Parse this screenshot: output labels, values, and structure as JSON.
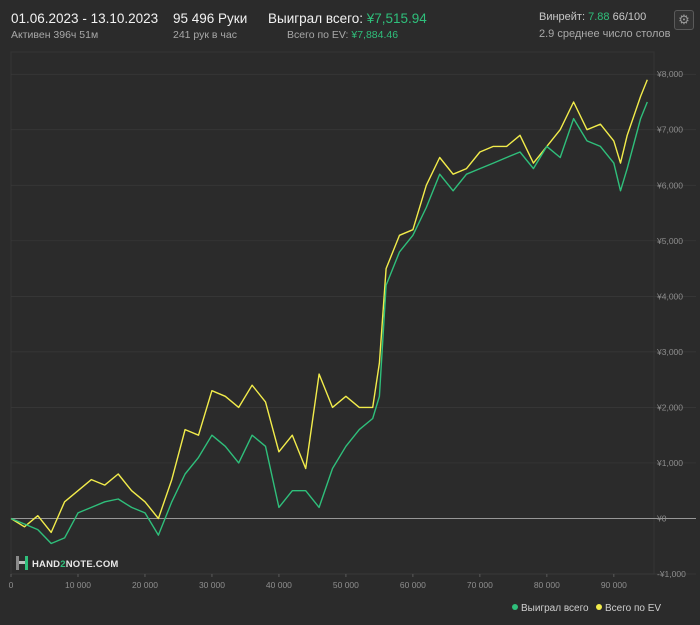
{
  "header": {
    "date_range": "01.06.2023 - 13.10.2023",
    "active_time": "Активен 396ч 51м",
    "hands": "95 496 Руки",
    "hands_per_hour": "241 рук в час",
    "won_label": "Выиграл всего:",
    "won_value": "¥7,515.94",
    "ev_label": "Всего по EV:",
    "ev_value": "¥7,884.46",
    "winrate_label": "Винрейт:",
    "winrate_value": "7.88",
    "winrate_suffix": "66/100",
    "tables": "2.9 среднее число столов",
    "settings_icon": "gear-icon"
  },
  "logo": {
    "text_a": "HAND",
    "text_b": "2",
    "text_c": "NOTE.COM"
  },
  "colors": {
    "won": "#2fbf7b",
    "ev": "#f2ec4b",
    "background": "#2b2b2b",
    "grid": "#3a3a3a",
    "zero": "#bdbdbd"
  },
  "chart_data": {
    "type": "line",
    "title": "",
    "xlabel": "",
    "ylabel": "",
    "xlim": [
      0,
      96000
    ],
    "ylim": [
      -1000,
      8400
    ],
    "x_ticks": [
      0,
      10000,
      20000,
      30000,
      40000,
      50000,
      60000,
      70000,
      80000,
      90000
    ],
    "x_tick_labels": [
      "0",
      "10 000",
      "20 000",
      "30 000",
      "40 000",
      "50 000",
      "60 000",
      "70 000",
      "80 000",
      "90 000"
    ],
    "y_ticks": [
      -1000,
      0,
      1000,
      2000,
      3000,
      4000,
      5000,
      6000,
      7000,
      8000
    ],
    "y_tick_labels": [
      "-¥1,000",
      "¥0",
      "¥1,000",
      "¥2,000",
      "¥3,000",
      "¥4,000",
      "¥5,000",
      "¥6,000",
      "¥7,000",
      "¥8,000"
    ],
    "grid": true,
    "legend_position": "bottom-right",
    "series": [
      {
        "name": "Выиграл всего",
        "color": "#2fbf7b",
        "x": [
          0,
          2000,
          4000,
          6000,
          8000,
          10000,
          12000,
          14000,
          16000,
          18000,
          20000,
          22000,
          24000,
          26000,
          28000,
          30000,
          32000,
          34000,
          36000,
          38000,
          40000,
          42000,
          44000,
          46000,
          48000,
          50000,
          52000,
          54000,
          55000,
          56000,
          58000,
          60000,
          62000,
          64000,
          66000,
          68000,
          70000,
          72000,
          74000,
          76000,
          78000,
          80000,
          82000,
          84000,
          86000,
          88000,
          90000,
          91000,
          92000,
          94000,
          95000
        ],
        "y": [
          0,
          -100,
          -200,
          -450,
          -350,
          100,
          200,
          300,
          350,
          200,
          100,
          -300,
          300,
          800,
          1100,
          1500,
          1300,
          1000,
          1500,
          1300,
          200,
          500,
          500,
          200,
          900,
          1300,
          1600,
          1800,
          2200,
          4200,
          4800,
          5100,
          5600,
          6200,
          5900,
          6200,
          6300,
          6400,
          6500,
          6600,
          6300,
          6700,
          6500,
          7200,
          6800,
          6700,
          6400,
          5900,
          6300,
          7200,
          7500
        ]
      },
      {
        "name": "Всего по EV",
        "color": "#f2ec4b",
        "x": [
          0,
          2000,
          4000,
          6000,
          8000,
          10000,
          12000,
          14000,
          16000,
          18000,
          20000,
          22000,
          24000,
          26000,
          28000,
          30000,
          32000,
          34000,
          36000,
          38000,
          40000,
          42000,
          44000,
          46000,
          48000,
          50000,
          52000,
          54000,
          55000,
          56000,
          58000,
          60000,
          62000,
          64000,
          66000,
          68000,
          70000,
          72000,
          74000,
          76000,
          78000,
          80000,
          82000,
          84000,
          86000,
          88000,
          90000,
          91000,
          92000,
          94000,
          95000
        ],
        "y": [
          0,
          -150,
          50,
          -250,
          300,
          500,
          700,
          600,
          800,
          500,
          300,
          0,
          700,
          1600,
          1500,
          2300,
          2200,
          2000,
          2400,
          2100,
          1200,
          1500,
          900,
          2600,
          2000,
          2200,
          2000,
          2000,
          2800,
          4500,
          5100,
          5200,
          6000,
          6500,
          6200,
          6300,
          6600,
          6700,
          6700,
          6900,
          6400,
          6700,
          7000,
          7500,
          7000,
          7100,
          6800,
          6400,
          6900,
          7600,
          7900
        ]
      }
    ]
  }
}
